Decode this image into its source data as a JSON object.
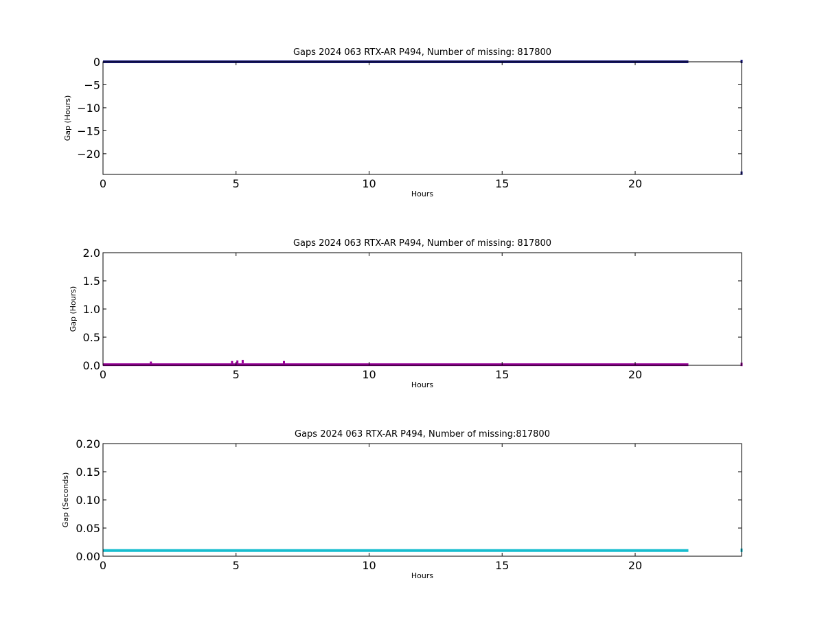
{
  "chart_data": [
    {
      "type": "scatter",
      "title": "Gaps 2024 063 RTX-AR  P494, Number of missing: 817800",
      "xlabel": "Hours",
      "ylabel": "Gap (Hours)",
      "xlim": [
        0,
        24
      ],
      "ylim": [
        -24.5,
        0
      ],
      "xticks": [
        "0",
        "5",
        "10",
        "15",
        "20"
      ],
      "xtick_values": [
        0,
        5,
        10,
        15,
        20
      ],
      "yticks": [
        "0",
        "−5",
        "−10",
        "−15",
        "−20"
      ],
      "ytick_values": [
        0,
        -5,
        -10,
        -15,
        -20
      ],
      "grid": false,
      "series": [
        {
          "color": "#1a1a80",
          "segments": [
            {
              "x_start": 0,
              "x_end": 22.0,
              "y": 0
            }
          ],
          "points": [
            {
              "x": 24.0,
              "y": -24.3
            },
            {
              "x": 24.0,
              "y": 0
            }
          ]
        }
      ]
    },
    {
      "type": "scatter",
      "title": "Gaps 2024 063 RTX-AR  P494, Number of missing: 817800",
      "xlabel": "Hours",
      "ylabel": "Gap (Hours)",
      "xlim": [
        0,
        24
      ],
      "ylim": [
        0,
        2.0
      ],
      "xticks": [
        "0",
        "5",
        "10",
        "15",
        "20"
      ],
      "xtick_values": [
        0,
        5,
        10,
        15,
        20
      ],
      "yticks": [
        "0.0",
        "0.5",
        "1.0",
        "1.5",
        "2.0"
      ],
      "ytick_values": [
        0,
        0.5,
        1.0,
        1.5,
        2.0
      ],
      "grid": false,
      "series": [
        {
          "color": "#990099",
          "segments": [
            {
              "x_start": 0,
              "x_end": 22.0,
              "y": 0.01
            }
          ],
          "points": [
            {
              "x": 1.8,
              "y": 0.03
            },
            {
              "x": 4.85,
              "y": 0.04
            },
            {
              "x": 5.05,
              "y": 0.05
            },
            {
              "x": 5.25,
              "y": 0.06
            },
            {
              "x": 6.8,
              "y": 0.04
            },
            {
              "x": 24.0,
              "y": 0.01
            }
          ]
        }
      ]
    },
    {
      "type": "scatter",
      "title": "Gaps 2024 063 RTX-AR  P494, Number of missing:817800",
      "xlabel": "Hours",
      "ylabel": "Gap (Seconds)",
      "xlim": [
        0,
        24
      ],
      "ylim": [
        0,
        0.2
      ],
      "xticks": [
        "0",
        "5",
        "10",
        "15",
        "20"
      ],
      "xtick_values": [
        0,
        5,
        10,
        15,
        20
      ],
      "yticks": [
        "0.00",
        "0.05",
        "0.10",
        "0.15",
        "0.20"
      ],
      "ytick_values": [
        0,
        0.05,
        0.1,
        0.15,
        0.2
      ],
      "grid": false,
      "series": [
        {
          "color": "#17becf",
          "segments": [
            {
              "x_start": 0,
              "x_end": 22.0,
              "y": 0.01
            }
          ],
          "points": [
            {
              "x": 24.0,
              "y": 0.01
            }
          ]
        }
      ]
    }
  ]
}
